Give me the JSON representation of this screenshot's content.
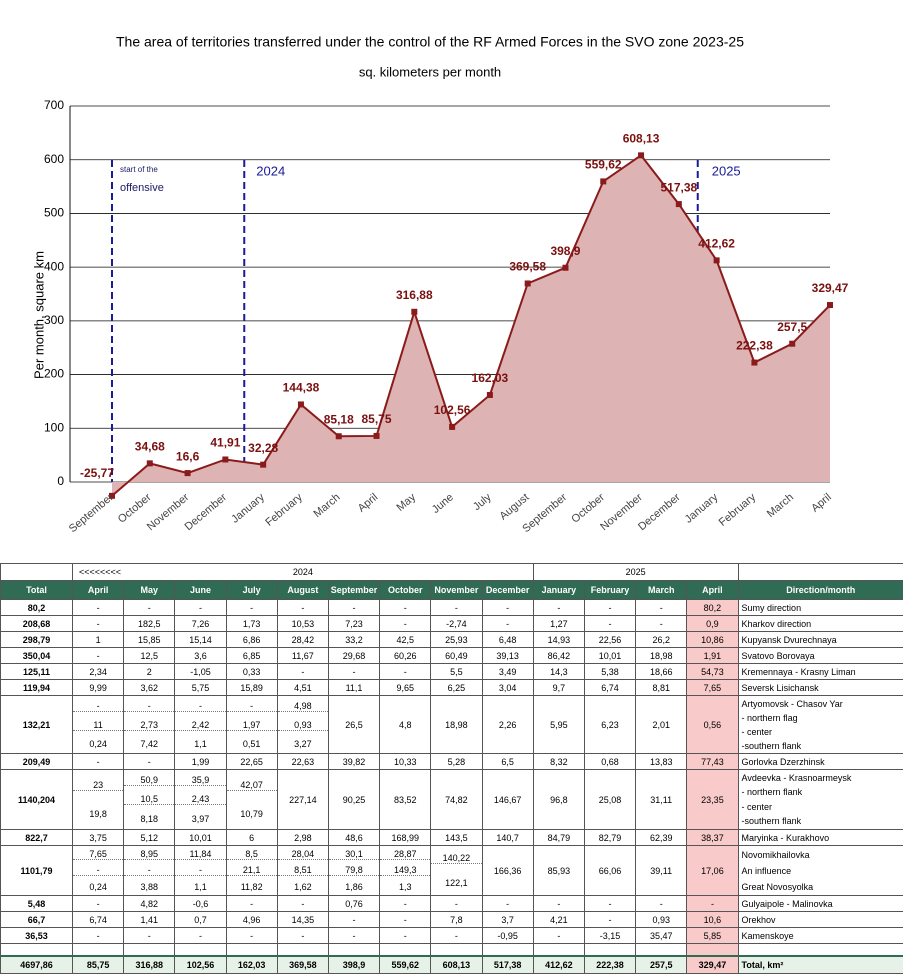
{
  "chart_data": {
    "type": "line",
    "title": "The area of territories transferred under the control of the RF Armed Forces in the SVO zone 2023-25",
    "subtitle": "sq. kilometers per month",
    "y_label": "Per month, square km",
    "categories": [
      "September",
      "October",
      "November",
      "December",
      "January",
      "February",
      "March",
      "April",
      "May",
      "June",
      "July",
      "August",
      "September",
      "October",
      "November",
      "December",
      "January",
      "February",
      "March",
      "April"
    ],
    "series": [
      {
        "color": "#8b1a1a",
        "fill": "#ddb3b3",
        "values": [
          -25.77,
          34.68,
          16.6,
          41.91,
          32.28,
          144.38,
          85.18,
          85.75,
          316.88,
          102.56,
          162.03,
          369.58,
          398.9,
          559.62,
          608.13,
          517.38,
          412.62,
          222.38,
          257.5,
          329.47
        ],
        "value_labels": [
          "-25,77",
          "34,68",
          "16,6",
          "41,91",
          "32,28",
          "144,38",
          "85,18",
          "85,75",
          "316,88",
          "102,56",
          "162,03",
          "369,58",
          "398,9",
          "559,62",
          "608,13",
          "517,38",
          "412,62",
          "222,38",
          "257,5",
          "329,47"
        ]
      }
    ],
    "ylim": [
      0,
      700
    ],
    "yticks": [
      0,
      100,
      200,
      300,
      400,
      500,
      600,
      700
    ],
    "grid": true,
    "annotations": [
      "start of the",
      "offensive",
      "2024",
      "2025"
    ],
    "watermark": "CK"
  },
  "table": {
    "top_header": [
      "<<<<<<<<",
      "2024",
      "2025"
    ],
    "header": [
      "Total",
      "April",
      "May",
      "June",
      "July",
      "August",
      "September",
      "October",
      "November",
      "December",
      "January",
      "February",
      "March",
      "April",
      "Direction/month"
    ],
    "rows": [
      [
        "80,2",
        "-",
        "-",
        "-",
        "-",
        "-",
        "-",
        "-",
        "-",
        "-",
        "-",
        "-",
        "-",
        "80,2",
        "Sumy direction"
      ],
      [
        "208,68",
        "-",
        "182,5",
        "7,26",
        "1,73",
        "10,53",
        "7,23",
        "-",
        "-2,74",
        "-",
        "1,27",
        "-",
        "-",
        "0,9",
        "Kharkov direction"
      ],
      [
        "298,79",
        "1",
        "15,85",
        "15,14",
        "6,86",
        "28,42",
        "33,2",
        "42,5",
        "25,93",
        "6,48",
        "14,93",
        "22,56",
        "26,2",
        "10,86",
        "Kupyansk Dvurechnaya"
      ],
      [
        "350,04",
        "-",
        "12,5",
        "3,6",
        "6,85",
        "11,67",
        "29,68",
        "60,26",
        "60,49",
        "39,13",
        "86,42",
        "10,01",
        "18,98",
        "1,91",
        "Svatovo Borovaya"
      ],
      [
        "125,11",
        "2,34",
        "2",
        "-1,05",
        "0,33",
        "-",
        "-",
        "-",
        "5,5",
        "3,49",
        "14,3",
        "5,38",
        "18,66",
        "54,73",
        "Kremennaya - Krasny Liman"
      ],
      [
        "119,94",
        "9,99",
        "3,62",
        "5,75",
        "15,89",
        "4,51",
        "11,1",
        "9,65",
        "6,25",
        "3,04",
        "9,7",
        "6,74",
        "8,81",
        "7,65",
        "Seversk Lisichansk"
      ],
      [
        "132,21",
        [
          "-",
          "11",
          "0,24"
        ],
        [
          "-",
          "2,73",
          "7,42"
        ],
        [
          "-",
          "2,42",
          "1,1"
        ],
        [
          "-",
          "1,97",
          "0,51"
        ],
        [
          "4,98",
          "0,93",
          "3,27"
        ],
        "26,5",
        "4,8",
        "18,98",
        "2,26",
        "5,95",
        "6,23",
        "2,01",
        "0,56",
        [
          "Artyomovsk - Chasov Yar",
          "- northern flag",
          "- center",
          "-southern flank"
        ]
      ],
      [
        "209,49",
        "-",
        "-",
        "1,99",
        "22,65",
        "22,63",
        "39,82",
        "10,33",
        "5,28",
        "6,5",
        "8,32",
        "0,68",
        "13,83",
        "77,43",
        "Gorlovka Dzerzhinsk"
      ],
      [
        "1140,204",
        [
          "23",
          "19,8"
        ],
        [
          "50,9",
          "10,5",
          "8,18"
        ],
        [
          "35,9",
          "2,43",
          "3,97"
        ],
        [
          "42,07",
          "10,79"
        ],
        "227,14",
        "90,25",
        "83,52",
        "74,82",
        "146,67",
        "96,8",
        "25,08",
        "31,11",
        "23,35",
        [
          "Avdeevka - Krasnoarmeysk",
          "- northern flank",
          "- center",
          "-southern flank"
        ]
      ],
      [
        "822,7",
        "3,75",
        "5,12",
        "10,01",
        "6",
        "2,98",
        "48,6",
        "168,99",
        "143,5",
        "140,7",
        "84,79",
        "82,79",
        "62,39",
        "38,37",
        "Maryinka - Kurakhovo"
      ],
      [
        "1101,79",
        [
          "7,65",
          "-",
          "0,24"
        ],
        [
          "8,95",
          "-",
          "3,88"
        ],
        [
          "11,84",
          "-",
          "1,1"
        ],
        [
          "8,5",
          "21,1",
          "11,82"
        ],
        [
          "28,04",
          "8,51",
          "1,62"
        ],
        [
          "30,1",
          "79,8",
          "1,86"
        ],
        [
          "28,87",
          "149,3",
          "1,3"
        ],
        [
          "140,22",
          "122,1"
        ],
        "166,36",
        "85,93",
        "66,06",
        "39,11",
        "17,06",
        [
          "Novomikhailovka",
          "An influence",
          "Great Novosyolka"
        ]
      ],
      [
        "5,48",
        "-",
        "4,82",
        "-0,6",
        "-",
        "-",
        "0,76",
        "-",
        "-",
        "-",
        "-",
        "-",
        "-",
        "-",
        "Gulyaipole - Malinovka"
      ],
      [
        "66,7",
        "6,74",
        "1,41",
        "0,7",
        "4,96",
        "14,35",
        "-",
        "-",
        "7,8",
        "3,7",
        "4,21",
        "-",
        "0,93",
        "10,6",
        "Orekhov"
      ],
      [
        "36,53",
        "-",
        "-",
        "-",
        "-",
        "-",
        "-",
        "-",
        "-",
        "-0,95",
        "-",
        "-3,15",
        "35,47",
        "5,85",
        "Kamenskoye"
      ]
    ],
    "total_row": [
      "4697,86",
      "85,75",
      "316,88",
      "102,56",
      "162,03",
      "369,58",
      "398,9",
      "559,62",
      "608,13",
      "517,38",
      "412,62",
      "222,38",
      "257,5",
      "329,47",
      "Total, km²"
    ]
  }
}
